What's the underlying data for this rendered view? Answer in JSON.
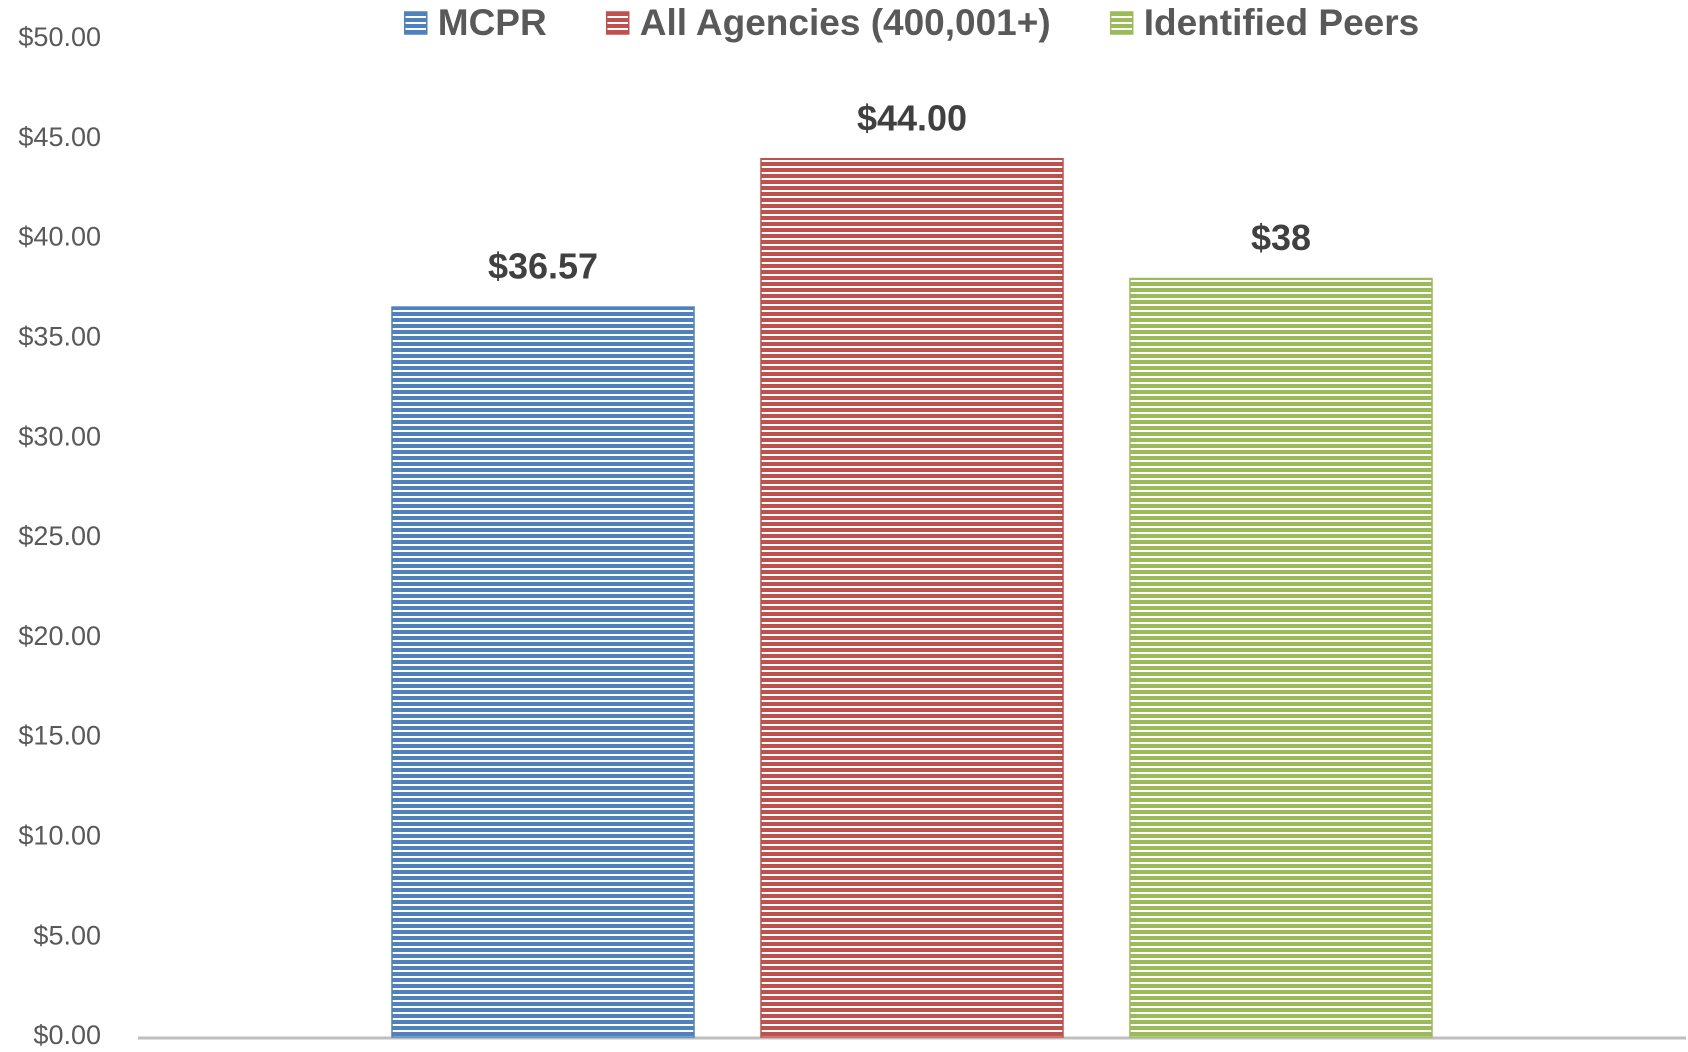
{
  "chart_data": {
    "type": "bar",
    "categories": [
      null
    ],
    "series": [
      {
        "name": "MCPR",
        "color": "#4f81bd",
        "values": [
          36.57
        ],
        "value_labels": [
          "$36.57"
        ]
      },
      {
        "name": "All Agencies (400,001+)",
        "color": "#c0504d",
        "values": [
          44
        ],
        "value_labels": [
          "$44.00"
        ]
      },
      {
        "name": "Identified Peers",
        "color": "#9bbb59",
        "values": [
          38
        ],
        "value_labels": [
          "$38"
        ]
      }
    ],
    "ylim": [
      0,
      50
    ],
    "yticks": [
      {
        "value": 0,
        "label": "$0.00"
      },
      {
        "value": 5,
        "label": "$5.00"
      },
      {
        "value": 10,
        "label": "$10.00"
      },
      {
        "value": 15,
        "label": "$15.00"
      },
      {
        "value": 20,
        "label": "$20.00"
      },
      {
        "value": 25,
        "label": "$25.00"
      },
      {
        "value": 30,
        "label": "$30.00"
      },
      {
        "value": 35,
        "label": "$35.00"
      },
      {
        "value": 40,
        "label": "$40.00"
      },
      {
        "value": 45,
        "label": "$45.00"
      },
      {
        "value": 50,
        "label": "$50.00"
      }
    ],
    "grid": false,
    "legend": "top"
  }
}
